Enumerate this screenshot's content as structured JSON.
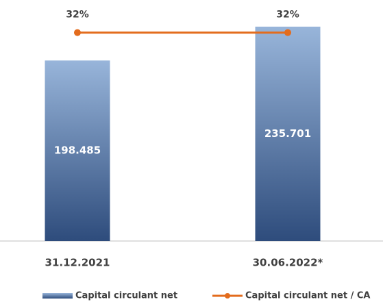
{
  "chart_data": {
    "type": "bar-line",
    "categories": [
      "31.12.2021",
      "30.06.2022*"
    ],
    "series": [
      {
        "name": "Capital circulant net",
        "type": "bar",
        "color": "#4f74a8",
        "values": [
          198.485,
          235.701
        ]
      },
      {
        "name": "Capital circulant net / CA",
        "type": "line",
        "color": "#e36c1d",
        "axis": "y2",
        "values": [
          32,
          32
        ],
        "value_labels": [
          "32%",
          "32%"
        ]
      }
    ],
    "ylim": [
      0,
      265
    ],
    "y2lim": [
      0,
      37
    ],
    "legend": "bottom"
  }
}
